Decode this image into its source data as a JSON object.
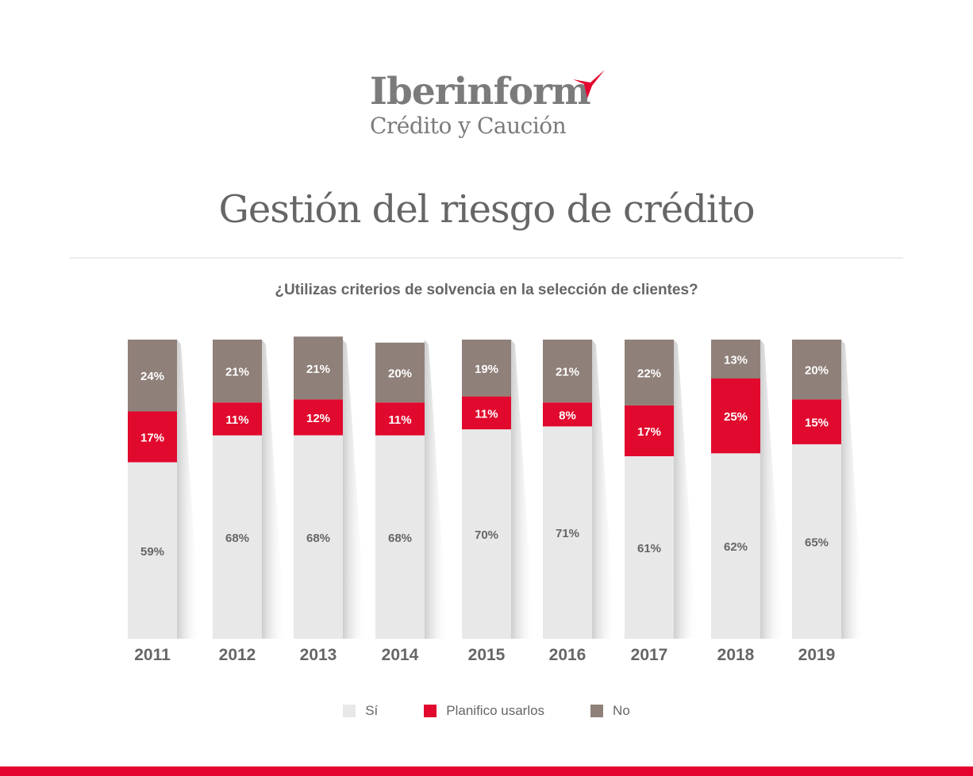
{
  "brand": {
    "name": "Iberinform",
    "tagline": "Crédito y Caución",
    "accent_color": "#e4032e"
  },
  "page_title": "Gestión del riesgo de crédito",
  "chart_data": {
    "type": "bar",
    "stacked": true,
    "title": "¿Utilizas criterios de solvencia en la selección de clientes?",
    "categories": [
      "2011",
      "2012",
      "2013",
      "2014",
      "2015",
      "2016",
      "2017",
      "2018",
      "2019"
    ],
    "series": [
      {
        "name": "Sí",
        "color": "#e8e8e8",
        "label_color": "#666666",
        "values": [
          59,
          68,
          68,
          68,
          70,
          71,
          61,
          62,
          65
        ]
      },
      {
        "name": "Planifico usarlos",
        "color": "#e1092d",
        "label_color": "#ffffff",
        "values": [
          17,
          11,
          12,
          11,
          11,
          8,
          17,
          25,
          15
        ]
      },
      {
        "name": "No",
        "color": "#8f8079",
        "label_color": "#ffffff",
        "values": [
          24,
          21,
          21,
          20,
          19,
          21,
          22,
          13,
          20
        ]
      }
    ],
    "value_suffix": "%",
    "ylim": [
      0,
      100
    ],
    "legend_position": "bottom",
    "grid": false
  }
}
